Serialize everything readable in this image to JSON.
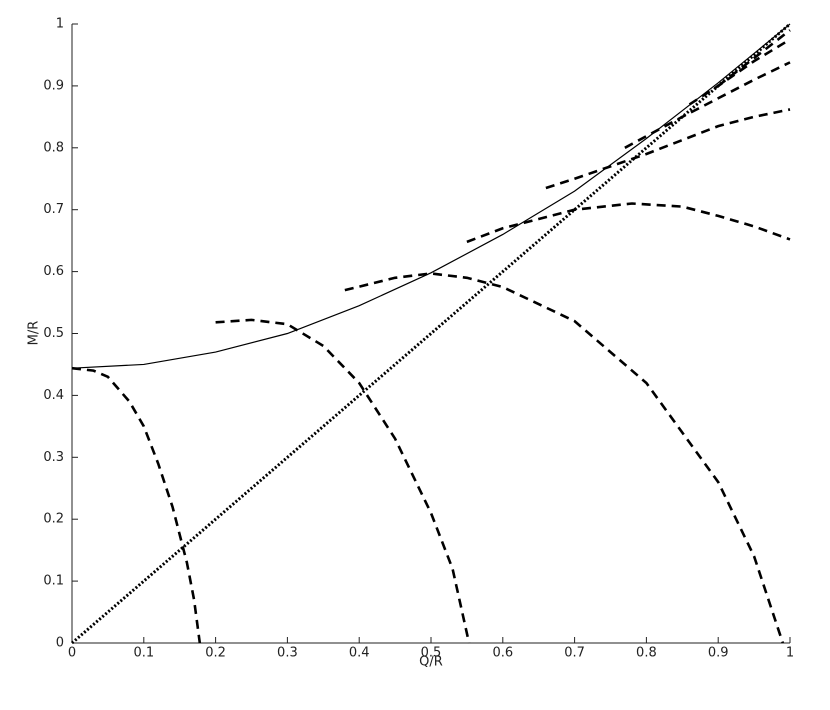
{
  "chart_data": {
    "type": "line",
    "xlabel": "Q/R",
    "ylabel": "M/R",
    "xlim": [
      0,
      1
    ],
    "ylim": [
      0,
      1
    ],
    "xticks": [
      0,
      0.1,
      0.2,
      0.3,
      0.4,
      0.5,
      0.6,
      0.7,
      0.8,
      0.9,
      1
    ],
    "yticks": [
      0,
      0.1,
      0.2,
      0.3,
      0.4,
      0.5,
      0.6,
      0.7,
      0.8,
      0.9,
      1
    ],
    "grid": false,
    "series": [
      {
        "color": "#000000",
        "style": "solid",
        "x": [
          0,
          0.1,
          0.2,
          0.3,
          0.4,
          0.5,
          0.6,
          0.7,
          0.8,
          0.9,
          1
        ],
        "values": [
          0.444,
          0.45,
          0.47,
          0.5,
          0.545,
          0.598,
          0.66,
          0.73,
          0.815,
          0.905,
          1
        ]
      },
      {
        "color": "#000000",
        "style": "dotted",
        "x": [
          0,
          1
        ],
        "values": [
          0,
          1
        ]
      },
      {
        "color": "#000000",
        "style": "dashed",
        "x": [
          0,
          0.03,
          0.05,
          0.08,
          0.1,
          0.12,
          0.14,
          0.16,
          0.17,
          0.178
        ],
        "values": [
          0.444,
          0.44,
          0.43,
          0.39,
          0.35,
          0.29,
          0.22,
          0.13,
          0.07,
          0
        ]
      },
      {
        "color": "#000000",
        "style": "dashed",
        "x": [
          0.2,
          0.25,
          0.3,
          0.35,
          0.4,
          0.45,
          0.5,
          0.53,
          0.553
        ],
        "values": [
          0.518,
          0.522,
          0.515,
          0.48,
          0.42,
          0.33,
          0.21,
          0.12,
          0
        ]
      },
      {
        "color": "#000000",
        "style": "dashed",
        "x": [
          0.38,
          0.45,
          0.5,
          0.55,
          0.6,
          0.7,
          0.8,
          0.9,
          0.95,
          0.99
        ],
        "values": [
          0.57,
          0.59,
          0.597,
          0.59,
          0.575,
          0.52,
          0.42,
          0.26,
          0.14,
          0
        ]
      },
      {
        "color": "#000000",
        "style": "dashed",
        "x": [
          0.55,
          0.6,
          0.7,
          0.78,
          0.85,
          0.9,
          0.95,
          1
        ],
        "values": [
          0.648,
          0.67,
          0.7,
          0.71,
          0.705,
          0.69,
          0.673,
          0.652
        ]
      },
      {
        "color": "#000000",
        "style": "dashed",
        "x": [
          0.66,
          0.7,
          0.8,
          0.9,
          0.95,
          1
        ],
        "values": [
          0.735,
          0.75,
          0.79,
          0.835,
          0.85,
          0.862
        ]
      },
      {
        "color": "#000000",
        "style": "dashed",
        "x": [
          0.77,
          0.85,
          0.9,
          0.95,
          1
        ],
        "values": [
          0.8,
          0.85,
          0.88,
          0.91,
          0.938
        ]
      },
      {
        "color": "#000000",
        "style": "dashed",
        "x": [
          0.86,
          0.9,
          0.95,
          1
        ],
        "values": [
          0.87,
          0.9,
          0.94,
          0.975
        ]
      },
      {
        "color": "#000000",
        "style": "dashed",
        "x": [
          0.9,
          0.95,
          1
        ],
        "values": [
          0.9,
          0.945,
          0.99
        ]
      }
    ]
  }
}
